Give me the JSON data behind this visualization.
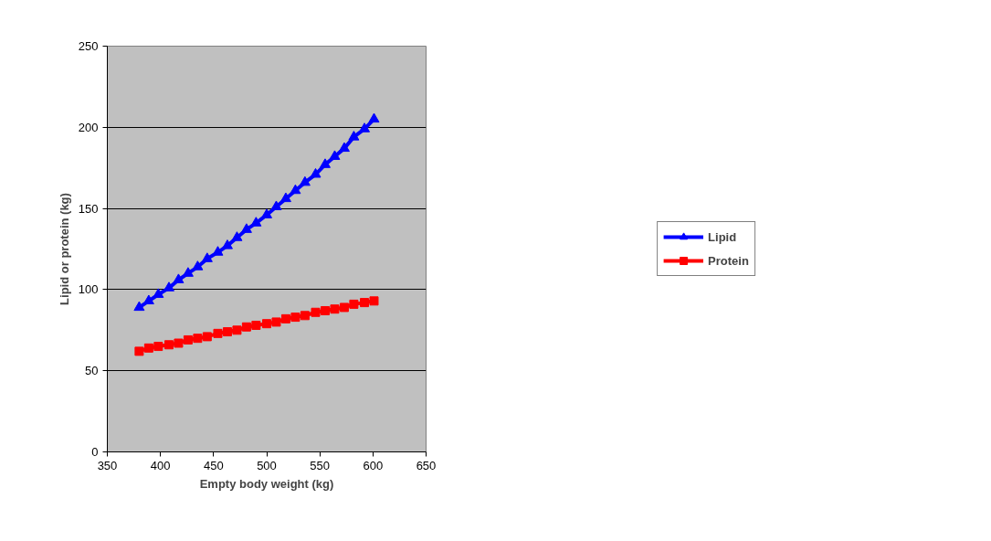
{
  "chart_data": {
    "type": "line",
    "xlabel": "Empty body weight (kg)",
    "ylabel": "Lipid or protein (kg)",
    "x": [
      380,
      389,
      398,
      408,
      417,
      426,
      435,
      444,
      454,
      463,
      472,
      481,
      490,
      500,
      509,
      518,
      527,
      536,
      546,
      555,
      564,
      573,
      582,
      592,
      601
    ],
    "series": [
      {
        "name": "Lipid",
        "color": "#0000ff",
        "marker": "triangle",
        "values": [
          89,
          93,
          97,
          101,
          106,
          110,
          114,
          119,
          123,
          127,
          132,
          137,
          141,
          146,
          151,
          156,
          161,
          166,
          171,
          177,
          182,
          187,
          194,
          199,
          205
        ]
      },
      {
        "name": "Protein",
        "color": "#ff0000",
        "marker": "square",
        "values": [
          62,
          64,
          65,
          66,
          67,
          69,
          70,
          71,
          73,
          74,
          75,
          77,
          78,
          79,
          80,
          82,
          83,
          84,
          86,
          87,
          88,
          89,
          91,
          92,
          93
        ]
      }
    ],
    "xlim": [
      350,
      650
    ],
    "xticks": [
      350,
      400,
      450,
      500,
      550,
      600,
      650
    ],
    "ylim": [
      0,
      250
    ],
    "yticks": [
      0,
      50,
      100,
      150,
      200,
      250
    ],
    "grid": "y",
    "legend": "right",
    "line_style": "solid"
  }
}
